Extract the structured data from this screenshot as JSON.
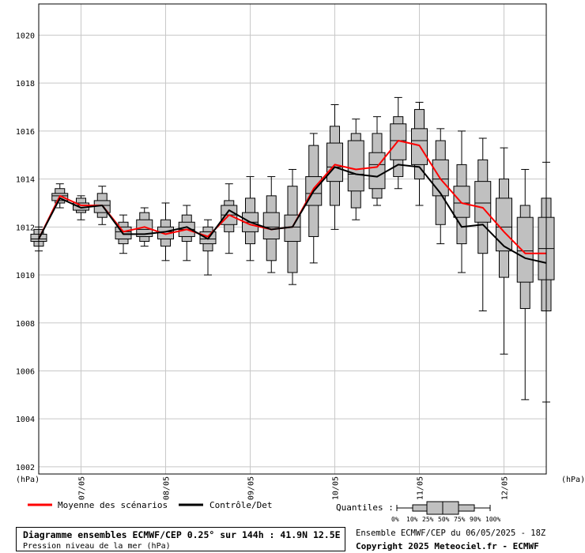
{
  "chart_data": {
    "type": "box",
    "y_unit_left": "(hPa)",
    "y_unit_right": "(hPa)",
    "ylim": [
      1001.7,
      1021.3
    ],
    "yticks": [
      1002,
      1004,
      1006,
      1008,
      1010,
      1012,
      1014,
      1016,
      1018,
      1020
    ],
    "grid": true,
    "x_day_labels": [
      "07/05",
      "08/05",
      "09/05",
      "10/05",
      "11/05",
      "12/05"
    ],
    "x_day_positions_h": [
      12,
      36,
      60,
      84,
      108,
      132
    ],
    "x_range_h": [
      0,
      144
    ],
    "step_h": 6,
    "boxes": [
      {
        "h": 0,
        "q0": 1011.0,
        "q10": 1011.2,
        "q25": 1011.4,
        "q50": 1011.5,
        "q75": 1011.7,
        "q90": 1011.9,
        "q100": 1012.0
      },
      {
        "h": 6,
        "q0": 1012.8,
        "q10": 1013.0,
        "q25": 1013.1,
        "q50": 1013.3,
        "q75": 1013.4,
        "q90": 1013.6,
        "q100": 1013.8
      },
      {
        "h": 12,
        "q0": 1012.3,
        "q10": 1012.6,
        "q25": 1012.7,
        "q50": 1012.9,
        "q75": 1013.0,
        "q90": 1013.2,
        "q100": 1013.3
      },
      {
        "h": 18,
        "q0": 1012.1,
        "q10": 1012.4,
        "q25": 1012.6,
        "q50": 1012.9,
        "q75": 1013.1,
        "q90": 1013.4,
        "q100": 1013.7
      },
      {
        "h": 24,
        "q0": 1010.9,
        "q10": 1011.3,
        "q25": 1011.5,
        "q50": 1011.8,
        "q75": 1012.0,
        "q90": 1012.2,
        "q100": 1012.5
      },
      {
        "h": 30,
        "q0": 1011.2,
        "q10": 1011.4,
        "q25": 1011.6,
        "q50": 1011.9,
        "q75": 1012.3,
        "q90": 1012.6,
        "q100": 1012.8
      },
      {
        "h": 36,
        "q0": 1010.6,
        "q10": 1011.2,
        "q25": 1011.5,
        "q50": 1011.8,
        "q75": 1012.0,
        "q90": 1012.3,
        "q100": 1013.0
      },
      {
        "h": 42,
        "q0": 1010.6,
        "q10": 1011.4,
        "q25": 1011.6,
        "q50": 1011.9,
        "q75": 1012.2,
        "q90": 1012.5,
        "q100": 1012.9
      },
      {
        "h": 48,
        "q0": 1010.0,
        "q10": 1011.0,
        "q25": 1011.3,
        "q50": 1011.5,
        "q75": 1011.8,
        "q90": 1012.0,
        "q100": 1012.3
      },
      {
        "h": 54,
        "q0": 1010.9,
        "q10": 1011.8,
        "q25": 1012.1,
        "q50": 1012.5,
        "q75": 1012.9,
        "q90": 1013.1,
        "q100": 1013.8
      },
      {
        "h": 60,
        "q0": 1010.6,
        "q10": 1011.3,
        "q25": 1011.8,
        "q50": 1012.2,
        "q75": 1012.6,
        "q90": 1013.2,
        "q100": 1014.1
      },
      {
        "h": 66,
        "q0": 1010.1,
        "q10": 1010.6,
        "q25": 1011.5,
        "q50": 1012.0,
        "q75": 1012.6,
        "q90": 1013.3,
        "q100": 1014.1
      },
      {
        "h": 72,
        "q0": 1009.6,
        "q10": 1010.1,
        "q25": 1011.4,
        "q50": 1012.0,
        "q75": 1012.5,
        "q90": 1013.7,
        "q100": 1014.4
      },
      {
        "h": 78,
        "q0": 1010.5,
        "q10": 1011.6,
        "q25": 1012.9,
        "q50": 1013.4,
        "q75": 1014.1,
        "q90": 1015.4,
        "q100": 1015.9
      },
      {
        "h": 84,
        "q0": 1011.9,
        "q10": 1012.9,
        "q25": 1013.9,
        "q50": 1014.5,
        "q75": 1015.5,
        "q90": 1016.2,
        "q100": 1017.1
      },
      {
        "h": 90,
        "q0": 1012.3,
        "q10": 1012.8,
        "q25": 1013.5,
        "q50": 1014.2,
        "q75": 1015.6,
        "q90": 1015.9,
        "q100": 1016.5
      },
      {
        "h": 96,
        "q0": 1012.9,
        "q10": 1013.2,
        "q25": 1013.6,
        "q50": 1014.6,
        "q75": 1015.1,
        "q90": 1015.9,
        "q100": 1016.6
      },
      {
        "h": 102,
        "q0": 1013.6,
        "q10": 1014.1,
        "q25": 1014.8,
        "q50": 1015.6,
        "q75": 1016.3,
        "q90": 1016.6,
        "q100": 1017.4
      },
      {
        "h": 108,
        "q0": 1012.9,
        "q10": 1014.0,
        "q25": 1014.6,
        "q50": 1015.6,
        "q75": 1016.1,
        "q90": 1016.9,
        "q100": 1017.2
      },
      {
        "h": 114,
        "q0": 1011.3,
        "q10": 1012.1,
        "q25": 1013.3,
        "q50": 1014.0,
        "q75": 1014.8,
        "q90": 1015.6,
        "q100": 1016.1
      },
      {
        "h": 120,
        "q0": 1010.1,
        "q10": 1011.3,
        "q25": 1012.4,
        "q50": 1013.0,
        "q75": 1013.7,
        "q90": 1014.6,
        "q100": 1016.0
      },
      {
        "h": 126,
        "q0": 1008.5,
        "q10": 1010.9,
        "q25": 1012.2,
        "q50": 1013.0,
        "q75": 1013.9,
        "q90": 1014.8,
        "q100": 1015.7
      },
      {
        "h": 132,
        "q0": 1006.7,
        "q10": 1009.9,
        "q25": 1011.0,
        "q50": 1012.0,
        "q75": 1013.2,
        "q90": 1014.0,
        "q100": 1015.3
      },
      {
        "h": 138,
        "q0": 1004.8,
        "q10": 1008.6,
        "q25": 1009.7,
        "q50": 1011.0,
        "q75": 1012.4,
        "q90": 1012.9,
        "q100": 1014.4
      },
      {
        "h": 144,
        "q0": 1004.7,
        "q10": 1008.5,
        "q25": 1009.8,
        "q50": 1011.1,
        "q75": 1012.4,
        "q90": 1013.2,
        "q100": 1014.7
      }
    ],
    "series": [
      {
        "name": "Moyenne des scénarios",
        "color": "#ff0000",
        "values": [
          1011.5,
          1013.3,
          1012.9,
          1012.9,
          1011.8,
          1012.0,
          1011.7,
          1011.9,
          1011.6,
          1012.5,
          1012.1,
          1011.9,
          1012.0,
          1013.6,
          1014.6,
          1014.4,
          1014.5,
          1015.6,
          1015.4,
          1014.0,
          1013.0,
          1012.8,
          1011.8,
          1010.9,
          1010.9
        ]
      },
      {
        "name": "Contrôle/Det",
        "color": "#000000",
        "values": [
          1011.5,
          1013.2,
          1012.8,
          1012.9,
          1011.7,
          1011.7,
          1011.8,
          1012.0,
          1011.5,
          1012.7,
          1012.2,
          1011.9,
          1012.0,
          1013.5,
          1014.5,
          1014.2,
          1014.1,
          1014.6,
          1014.5,
          1013.4,
          1012.0,
          1012.1,
          1011.2,
          1010.7,
          1010.5
        ]
      }
    ],
    "quantiles_label": "Quantiles :",
    "quantile_ticks": [
      "0%",
      "10%",
      "25%",
      "50%",
      "75%",
      "90%",
      "100%"
    ]
  },
  "footer": {
    "title": "Diagramme ensembles ECMWF/CEP 0.25° sur 144h : 41.9N 12.5E",
    "subtitle": "Pression niveau de la mer (hPa)",
    "run_info": "Ensemble ECMWF/CEP du 06/05/2025 - 18Z",
    "copyright": "Copyright 2025 Meteociel.fr - ECMWF"
  },
  "colors": {
    "box_fill": "#c0c0c0",
    "grid": "#c8c8c8",
    "mean": "#ff0000",
    "control": "#000000"
  }
}
